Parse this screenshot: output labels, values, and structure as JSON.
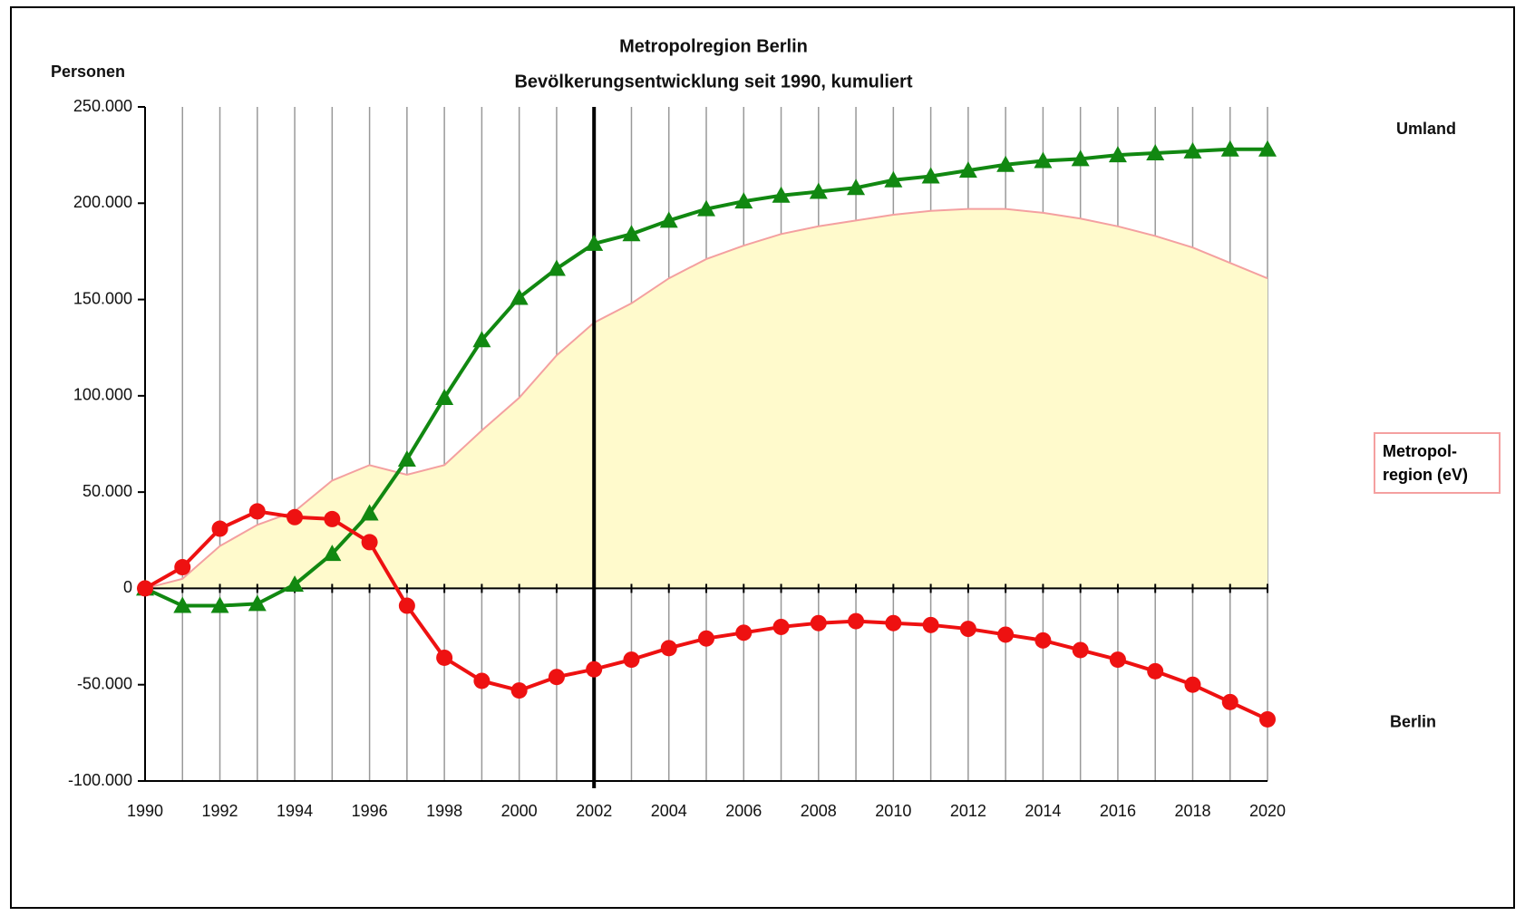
{
  "chart_data": {
    "type": "line",
    "title": "Metropolregion Berlin",
    "subtitle": "Bevölkerungsentwicklung seit 1990, kumuliert",
    "y_label": "Personen",
    "x": [
      1990,
      1991,
      1992,
      1993,
      1994,
      1995,
      1996,
      1997,
      1998,
      1999,
      2000,
      2001,
      2002,
      2003,
      2004,
      2005,
      2006,
      2007,
      2008,
      2009,
      2010,
      2011,
      2012,
      2013,
      2014,
      2015,
      2016,
      2017,
      2018,
      2019,
      2020
    ],
    "series": [
      {
        "name": "Metropol-\nregion (eV)",
        "kind": "area",
        "color": "#fffacc",
        "line_color": "#f4a0a0",
        "values": [
          0,
          5000,
          22000,
          33000,
          40000,
          56000,
          64000,
          59000,
          64000,
          82000,
          99000,
          121000,
          138000,
          148000,
          161000,
          171000,
          178000,
          184000,
          188000,
          191000,
          194000,
          196000,
          197000,
          197000,
          195000,
          192000,
          188000,
          183000,
          177000,
          169000,
          161000
        ]
      },
      {
        "name": "Umland",
        "kind": "line",
        "marker": "triangle",
        "color": "#118811",
        "values": [
          0,
          -9000,
          -9000,
          -8000,
          2000,
          18000,
          39000,
          67000,
          99000,
          129000,
          151000,
          166000,
          179000,
          184000,
          191000,
          197000,
          201000,
          204000,
          206000,
          208000,
          212000,
          214000,
          217000,
          220000,
          222000,
          223000,
          225000,
          226000,
          227000,
          228000,
          228000
        ]
      },
      {
        "name": "Berlin",
        "kind": "line",
        "marker": "circle",
        "color": "#ee1111",
        "values": [
          0,
          11000,
          31000,
          40000,
          37000,
          36000,
          24000,
          -9000,
          -36000,
          -48000,
          -53000,
          -46000,
          -42000,
          -37000,
          -31000,
          -26000,
          -23000,
          -20000,
          -18000,
          -17000,
          -18000,
          -19000,
          -21000,
          -24000,
          -27000,
          -32000,
          -37000,
          -43000,
          -50000,
          -59000,
          -68000
        ]
      }
    ],
    "xlim": [
      1990,
      2020
    ],
    "xticks": [
      1990,
      1992,
      1994,
      1996,
      1998,
      2000,
      2002,
      2004,
      2006,
      2008,
      2010,
      2012,
      2014,
      2016,
      2018,
      2020
    ],
    "ylim": [
      -100000,
      250000
    ],
    "yticks": [
      {
        "value": -100000,
        "label": "-100.000"
      },
      {
        "value": -50000,
        "label": "-50.000"
      },
      0,
      {
        "value": 50000,
        "label": "50.000"
      },
      {
        "value": 100000,
        "label": "100.000"
      },
      {
        "value": 150000,
        "label": "150.000"
      },
      {
        "value": 200000,
        "label": "200.000"
      },
      {
        "value": 250000,
        "label": "250.000"
      }
    ],
    "vline": 2002,
    "grid": true
  }
}
